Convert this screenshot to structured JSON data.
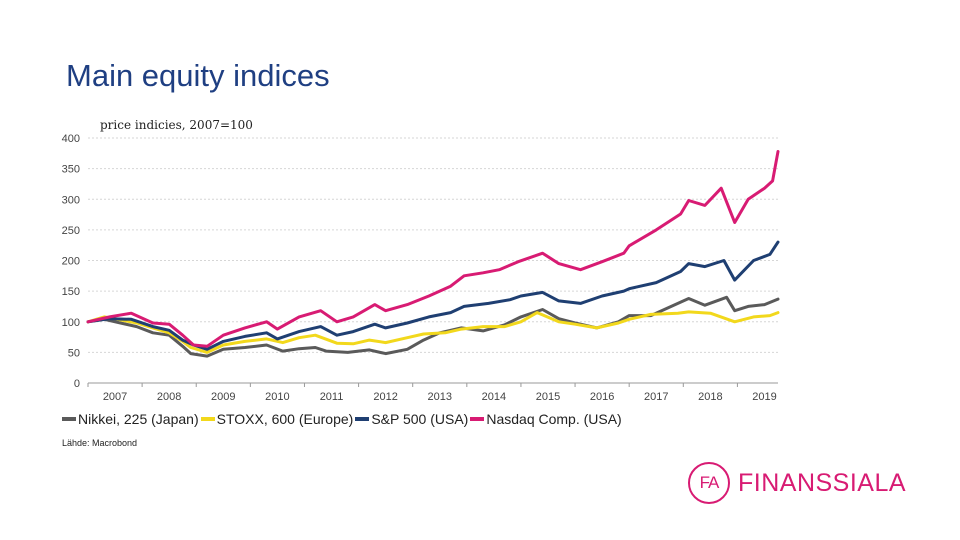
{
  "page": {
    "title": "Main equity indices",
    "subtitle": "price indicies, 2007=100",
    "source": "Lähde: Macrobond"
  },
  "logo": {
    "mark": "FA",
    "word": "FINANSSIALA",
    "color": "#d81b73"
  },
  "chart_data": {
    "type": "line",
    "ylim": [
      0,
      400
    ],
    "yticks": [
      0,
      50,
      100,
      150,
      200,
      250,
      300,
      350,
      400
    ],
    "xlim": [
      2007.0,
      2019.75
    ],
    "xtick_labels": [
      "2007",
      "2008",
      "2009",
      "2010",
      "2011",
      "2012",
      "2013",
      "2014",
      "2015",
      "2016",
      "2017",
      "2018",
      "2019"
    ],
    "grid": "horizontal",
    "legend": "bottom",
    "series": [
      {
        "name": "Nikkei, 225 (Japan)",
        "color": "#5a5a5a",
        "points": [
          [
            2007.0,
            100
          ],
          [
            2007.3,
            104
          ],
          [
            2007.6,
            98
          ],
          [
            2007.9,
            92
          ],
          [
            2008.2,
            82
          ],
          [
            2008.5,
            78
          ],
          [
            2008.75,
            60
          ],
          [
            2008.9,
            48
          ],
          [
            2009.2,
            44
          ],
          [
            2009.5,
            55
          ],
          [
            2009.9,
            58
          ],
          [
            2010.3,
            62
          ],
          [
            2010.6,
            52
          ],
          [
            2010.9,
            56
          ],
          [
            2011.2,
            58
          ],
          [
            2011.4,
            52
          ],
          [
            2011.8,
            50
          ],
          [
            2012.2,
            54
          ],
          [
            2012.5,
            48
          ],
          [
            2012.9,
            55
          ],
          [
            2013.2,
            70
          ],
          [
            2013.5,
            82
          ],
          [
            2013.9,
            90
          ],
          [
            2014.3,
            85
          ],
          [
            2014.7,
            95
          ],
          [
            2015.0,
            108
          ],
          [
            2015.4,
            120
          ],
          [
            2015.7,
            105
          ],
          [
            2016.0,
            98
          ],
          [
            2016.4,
            90
          ],
          [
            2016.8,
            100
          ],
          [
            2017.0,
            110
          ],
          [
            2017.4,
            110
          ],
          [
            2017.9,
            130
          ],
          [
            2018.1,
            138
          ],
          [
            2018.4,
            127
          ],
          [
            2018.8,
            140
          ],
          [
            2018.95,
            118
          ],
          [
            2019.2,
            125
          ],
          [
            2019.5,
            128
          ],
          [
            2019.75,
            137
          ]
        ]
      },
      {
        "name": "STOXX, 600 (Europe)",
        "color": "#f2d81c",
        "points": [
          [
            2007.0,
            100
          ],
          [
            2007.3,
            108
          ],
          [
            2007.6,
            103
          ],
          [
            2007.9,
            98
          ],
          [
            2008.2,
            90
          ],
          [
            2008.5,
            82
          ],
          [
            2008.75,
            68
          ],
          [
            2008.9,
            58
          ],
          [
            2009.2,
            50
          ],
          [
            2009.5,
            62
          ],
          [
            2009.9,
            68
          ],
          [
            2010.3,
            72
          ],
          [
            2010.6,
            66
          ],
          [
            2010.9,
            74
          ],
          [
            2011.2,
            78
          ],
          [
            2011.6,
            65
          ],
          [
            2011.9,
            64
          ],
          [
            2012.2,
            70
          ],
          [
            2012.5,
            66
          ],
          [
            2012.9,
            74
          ],
          [
            2013.2,
            80
          ],
          [
            2013.6,
            82
          ],
          [
            2013.9,
            88
          ],
          [
            2014.3,
            92
          ],
          [
            2014.7,
            92
          ],
          [
            2015.0,
            100
          ],
          [
            2015.3,
            115
          ],
          [
            2015.7,
            100
          ],
          [
            2016.0,
            96
          ],
          [
            2016.4,
            90
          ],
          [
            2016.8,
            98
          ],
          [
            2017.0,
            104
          ],
          [
            2017.4,
            112
          ],
          [
            2017.9,
            114
          ],
          [
            2018.1,
            116
          ],
          [
            2018.5,
            114
          ],
          [
            2018.95,
            100
          ],
          [
            2019.3,
            108
          ],
          [
            2019.6,
            110
          ],
          [
            2019.75,
            115
          ]
        ]
      },
      {
        "name": "S&P 500 (USA)",
        "color": "#1f3f72",
        "points": [
          [
            2007.0,
            100
          ],
          [
            2007.4,
            105
          ],
          [
            2007.8,
            104
          ],
          [
            2008.2,
            92
          ],
          [
            2008.5,
            86
          ],
          [
            2008.75,
            70
          ],
          [
            2008.95,
            62
          ],
          [
            2009.2,
            55
          ],
          [
            2009.5,
            68
          ],
          [
            2009.9,
            76
          ],
          [
            2010.3,
            82
          ],
          [
            2010.5,
            72
          ],
          [
            2010.9,
            84
          ],
          [
            2011.3,
            92
          ],
          [
            2011.6,
            78
          ],
          [
            2011.9,
            84
          ],
          [
            2012.3,
            96
          ],
          [
            2012.5,
            90
          ],
          [
            2012.9,
            98
          ],
          [
            2013.3,
            108
          ],
          [
            2013.7,
            115
          ],
          [
            2013.95,
            125
          ],
          [
            2014.4,
            130
          ],
          [
            2014.8,
            136
          ],
          [
            2015.0,
            142
          ],
          [
            2015.4,
            148
          ],
          [
            2015.7,
            134
          ],
          [
            2016.1,
            130
          ],
          [
            2016.5,
            142
          ],
          [
            2016.9,
            150
          ],
          [
            2017.0,
            154
          ],
          [
            2017.5,
            164
          ],
          [
            2017.95,
            182
          ],
          [
            2018.1,
            195
          ],
          [
            2018.4,
            190
          ],
          [
            2018.75,
            200
          ],
          [
            2018.95,
            168
          ],
          [
            2019.3,
            200
          ],
          [
            2019.6,
            210
          ],
          [
            2019.75,
            230
          ]
        ]
      },
      {
        "name": "Nasdaq Comp. (USA)",
        "color": "#d81b73",
        "points": [
          [
            2007.0,
            100
          ],
          [
            2007.4,
            108
          ],
          [
            2007.8,
            114
          ],
          [
            2008.2,
            98
          ],
          [
            2008.5,
            96
          ],
          [
            2008.75,
            78
          ],
          [
            2008.95,
            62
          ],
          [
            2009.2,
            60
          ],
          [
            2009.5,
            78
          ],
          [
            2009.9,
            90
          ],
          [
            2010.3,
            100
          ],
          [
            2010.5,
            88
          ],
          [
            2010.9,
            108
          ],
          [
            2011.3,
            118
          ],
          [
            2011.6,
            100
          ],
          [
            2011.9,
            108
          ],
          [
            2012.3,
            128
          ],
          [
            2012.5,
            118
          ],
          [
            2012.9,
            128
          ],
          [
            2013.3,
            142
          ],
          [
            2013.7,
            158
          ],
          [
            2013.95,
            175
          ],
          [
            2014.3,
            180
          ],
          [
            2014.6,
            185
          ],
          [
            2014.95,
            198
          ],
          [
            2015.4,
            212
          ],
          [
            2015.7,
            195
          ],
          [
            2016.1,
            185
          ],
          [
            2016.5,
            198
          ],
          [
            2016.9,
            212
          ],
          [
            2017.0,
            224
          ],
          [
            2017.5,
            250
          ],
          [
            2017.95,
            276
          ],
          [
            2018.1,
            298
          ],
          [
            2018.4,
            290
          ],
          [
            2018.7,
            318
          ],
          [
            2018.95,
            262
          ],
          [
            2019.2,
            300
          ],
          [
            2019.5,
            318
          ],
          [
            2019.65,
            330
          ],
          [
            2019.75,
            378
          ]
        ]
      }
    ]
  }
}
